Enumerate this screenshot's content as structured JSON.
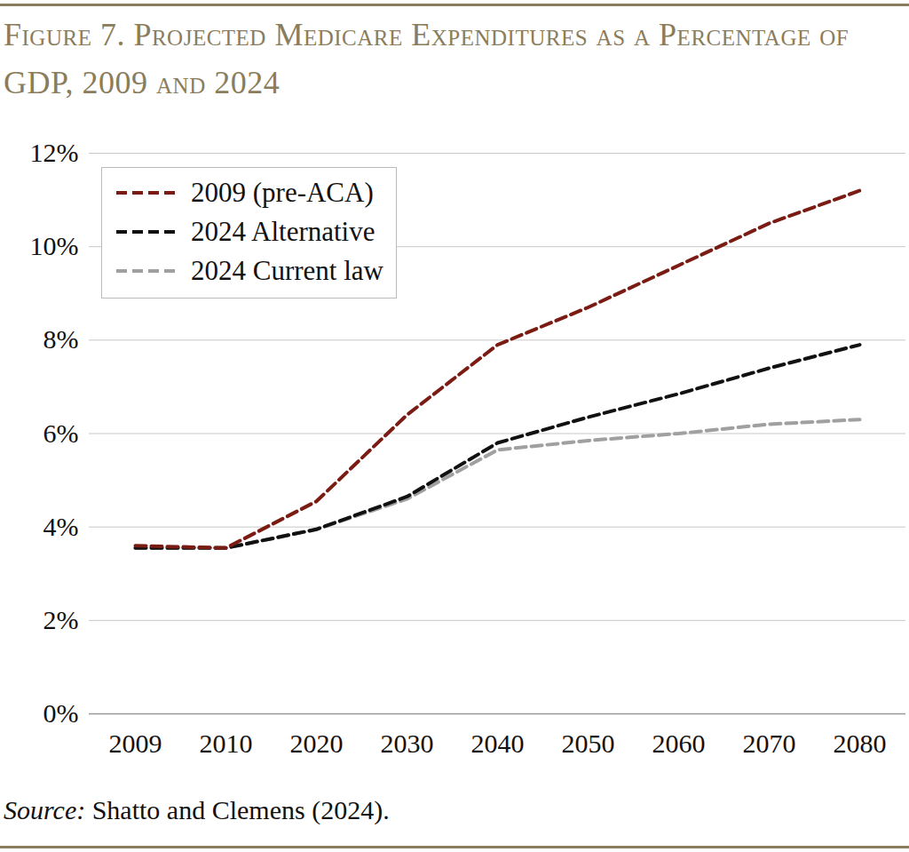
{
  "chart_data": {
    "type": "line",
    "title": "Figure 7. Projected Medicare Expenditures as a Percentage of GDP, 2009 and 2024",
    "caption": "Source: Shatto and Clemens (2024).",
    "categories": [
      "2009",
      "2010",
      "2020",
      "2030",
      "2040",
      "2050",
      "2060",
      "2070",
      "2080"
    ],
    "series": [
      {
        "name": "2009 (pre-ACA)",
        "color": "#7b1c14",
        "line_style": "dashed",
        "values": [
          3.6,
          3.55,
          4.55,
          6.4,
          7.9,
          8.7,
          9.6,
          10.5,
          11.2
        ]
      },
      {
        "name": "2024 Alternative",
        "color": "#111111",
        "line_style": "dashed",
        "values": [
          3.55,
          3.55,
          3.95,
          4.65,
          5.8,
          6.35,
          6.85,
          7.4,
          7.9
        ]
      },
      {
        "name": "2024 Current law",
        "color": "#a0a0a0",
        "line_style": "dashed",
        "values": [
          3.55,
          3.55,
          3.95,
          4.6,
          5.65,
          5.85,
          6.0,
          6.2,
          6.3
        ]
      }
    ],
    "ylim": [
      0,
      12
    ],
    "yticks": [
      {
        "value": 0,
        "label": "0%"
      },
      {
        "value": 2,
        "label": "2%"
      },
      {
        "value": 4,
        "label": "4%"
      },
      {
        "value": 6,
        "label": "6%"
      },
      {
        "value": 8,
        "label": "8%"
      },
      {
        "value": 10,
        "label": "10%"
      },
      {
        "value": 12,
        "label": "12%"
      }
    ],
    "grid": true,
    "legend": "top-left"
  }
}
